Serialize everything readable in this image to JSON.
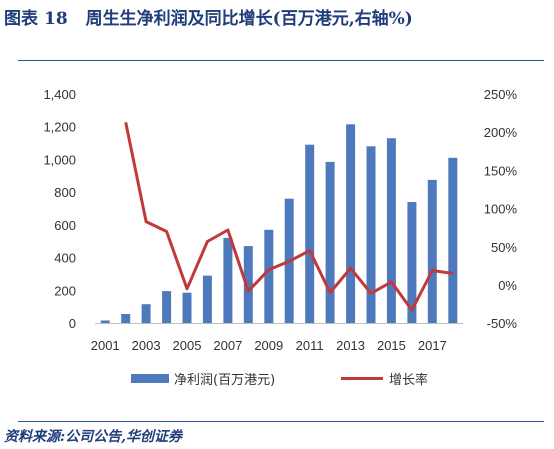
{
  "header": {
    "fig_label": "图表",
    "fig_number": "18",
    "title_text": "周生生净利润及同比增长(百万港元,右轴%)"
  },
  "source_text": "资料来源:公司公告,华创证券",
  "colors": {
    "bar": "#4f79bd",
    "line": "#c0393b",
    "title": "#1f3d7a",
    "rule": "#2f4f8f"
  },
  "chart_data": {
    "type": "bar",
    "years": [
      2001,
      2002,
      2003,
      2004,
      2005,
      2006,
      2007,
      2008,
      2009,
      2010,
      2011,
      2012,
      2013,
      2014,
      2015,
      2016,
      2017,
      2018
    ],
    "x_tick_labels": [
      "2001",
      "2003",
      "2005",
      "2007",
      "2009",
      "2011",
      "2013",
      "2015",
      "2017"
    ],
    "y_left_ticks": [
      "0",
      "200",
      "400",
      "600",
      "800",
      "1,000",
      "1,200",
      "1,400"
    ],
    "y_left_lim": [
      0,
      1400
    ],
    "y_right_ticks": [
      "-50%",
      "0%",
      "50%",
      "100%",
      "150%",
      "200%",
      "250%"
    ],
    "y_right_lim": [
      -50,
      250
    ],
    "series": [
      {
        "name": "净利润(百万港元)",
        "type": "bar",
        "axis": "left",
        "values": [
          15,
          55,
          115,
          195,
          185,
          290,
          520,
          470,
          570,
          760,
          1090,
          985,
          1215,
          1080,
          1130,
          740,
          875,
          1010
        ]
      },
      {
        "name": "增长率",
        "type": "line",
        "axis": "right",
        "values": [
          null,
          213,
          83,
          70,
          -5,
          57,
          72,
          -8,
          20,
          31,
          45,
          -10,
          22,
          -11,
          4,
          -33,
          19,
          15
        ]
      }
    ],
    "grid": false,
    "legend_position": "bottom"
  }
}
